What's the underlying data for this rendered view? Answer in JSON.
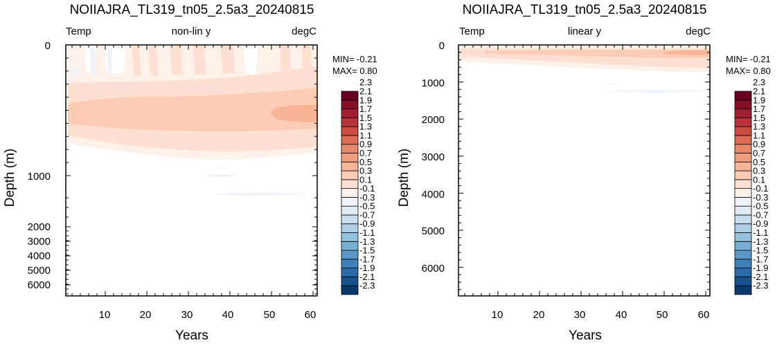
{
  "colors": {
    "levels": [
      "#0a3a6e",
      "#15508f",
      "#2b6aab",
      "#3f82bb",
      "#5b98c8",
      "#76aed4",
      "#93c1de",
      "#aecfe6",
      "#c9deee",
      "#dfebf5",
      "#edf3f9",
      "#fdf1ea",
      "#fde0d1",
      "#fcccb4",
      "#f8b497",
      "#f29f80",
      "#e8876a",
      "#dc6b53",
      "#cb4c42",
      "#b8343a",
      "#a11d30",
      "#850f26",
      "#67001f"
    ],
    "frame": "#000000"
  },
  "colorbar": {
    "labels": [
      "-2.3",
      "-2.1",
      "-1.9",
      "-1.7",
      "-1.5",
      "-1.3",
      "-1.1",
      "-0.9",
      "-0.7",
      "-0.5",
      "-0.3",
      "-0.1",
      "0.1",
      "0.3",
      "0.5",
      "0.7",
      "0.9",
      "1.1",
      "1.3",
      "1.5",
      "1.7",
      "1.9",
      "2.1",
      "2.3"
    ]
  },
  "chart_data": [
    {
      "type": "heatmap",
      "title": "NOIIAJRA_TL319_tn05_2.5a3_20240815",
      "subtitle_left": "Temp",
      "subtitle_center": "non-lin y",
      "subtitle_right": "degC",
      "xlabel": "Years",
      "ylabel": "Depth (m)",
      "xlim": [
        0.5,
        61
      ],
      "x_ticks": [
        "10",
        "20",
        "30",
        "40",
        "50",
        "60"
      ],
      "y_ticks": [
        "0",
        "1000",
        "2000",
        "3000",
        "4000",
        "5000",
        "6000"
      ],
      "y_scale": "non-linear",
      "stat_min": "MIN= -0.21",
      "stat_max": "MAX=  0.80",
      "contour_levels": [
        -2.3,
        -2.1,
        -1.9,
        -1.7,
        -1.5,
        -1.3,
        -1.1,
        -0.9,
        -0.7,
        -0.5,
        -0.3,
        -0.1,
        0.1,
        0.3,
        0.5,
        0.7,
        0.9,
        1.1,
        1.3,
        1.5,
        1.7,
        1.9,
        2.1,
        2.3
      ],
      "value_range": [
        -0.21,
        0.8
      ]
    },
    {
      "type": "heatmap",
      "title": "NOIIAJRA_TL319_tn05_2.5a3_20240815",
      "subtitle_left": "Temp",
      "subtitle_center": "linear y",
      "subtitle_right": "degC",
      "xlabel": "Years",
      "ylabel": "Depth (m)",
      "xlim": [
        0.5,
        61
      ],
      "x_ticks": [
        "10",
        "20",
        "30",
        "40",
        "50",
        "60"
      ],
      "y_ticks": [
        "0",
        "1000",
        "2000",
        "3000",
        "4000",
        "5000",
        "6000"
      ],
      "y_scale": "linear",
      "stat_min": "MIN= -0.21",
      "stat_max": "MAX=  0.80",
      "contour_levels": [
        -2.3,
        -2.1,
        -1.9,
        -1.7,
        -1.5,
        -1.3,
        -1.1,
        -0.9,
        -0.7,
        -0.5,
        -0.3,
        -0.1,
        0.1,
        0.3,
        0.5,
        0.7,
        0.9,
        1.1,
        1.3,
        1.5,
        1.7,
        1.9,
        2.1,
        2.3
      ],
      "value_range": [
        -0.21,
        0.8
      ]
    }
  ]
}
